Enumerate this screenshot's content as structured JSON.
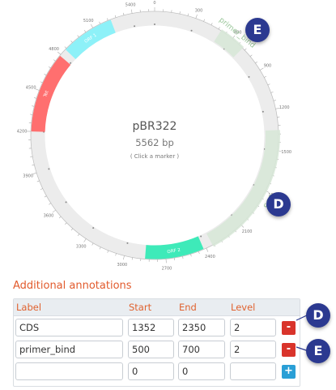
{
  "map": {
    "name": "pBR322",
    "size_label": "5562 bp",
    "hint": "( Click a marker )",
    "total_bp": 5562,
    "ticks": [
      "0",
      "300",
      "600",
      "900",
      "1200",
      "1500",
      "1800",
      "2100",
      "2400",
      "2700",
      "3000",
      "3300",
      "3600",
      "3900",
      "4200",
      "4500",
      "4800",
      "5100",
      "5400"
    ],
    "features": [
      {
        "label": "ORF 1",
        "start": 4850,
        "end": 5240,
        "color": "#8df1f8"
      },
      {
        "label": "Tet",
        "start": 4200,
        "end": 4790,
        "color": "#ff6f6f"
      },
      {
        "label": "ORF 2",
        "start": 2420,
        "end": 2850,
        "color": "#3eeab9"
      }
    ],
    "annotation_arcs": [
      {
        "label": "primer_bind",
        "start": 500,
        "end": 700,
        "color": "#d7e8d7"
      },
      {
        "label": "CDS",
        "start": 1352,
        "end": 2350,
        "color": "#d7e8d7"
      }
    ]
  },
  "annotations": {
    "title": "Additional annotations",
    "headers": {
      "label": "Label",
      "start": "Start",
      "end": "End",
      "level": "Level"
    },
    "rows": [
      {
        "label": "CDS",
        "start": "1352",
        "end": "2350",
        "level": "2"
      },
      {
        "label": "primer_bind",
        "start": "500",
        "end": "700",
        "level": "2"
      },
      {
        "label": "",
        "start": "0",
        "end": "0",
        "level": ""
      }
    ],
    "delete_label": "-",
    "add_label": "+"
  },
  "callouts": {
    "d": "D",
    "e": "E"
  }
}
